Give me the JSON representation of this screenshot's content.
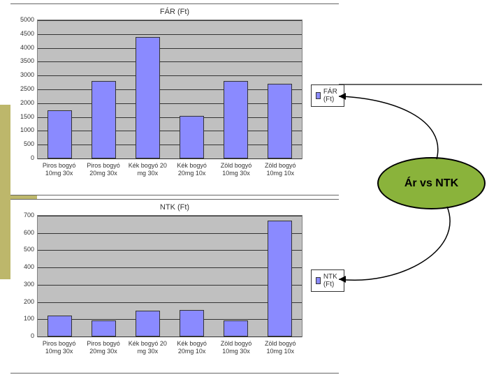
{
  "sidebar": {
    "olive_color": "#bdb76b"
  },
  "chart1": {
    "type": "bar",
    "title": "FÁR (Ft)",
    "categories": [
      "Piros bogyó 10mg 30x",
      "Piros bogyó 20mg 30x",
      "Kék bogyó 20 mg 30x",
      "Kék bogyó 20mg 10x",
      "Zöld bogyó 10mg 30x",
      "Zöld bogyó 10mg 10x"
    ],
    "values": [
      1750,
      2800,
      4400,
      1550,
      2800,
      2700
    ],
    "bar_color": "#8a8aff",
    "ylim": [
      0,
      5000
    ],
    "ytick_step": 500,
    "background_color": "#c0c0c0",
    "grid_color": "#333333",
    "bar_width": 0.55,
    "legend_label": "FÁR (Ft)",
    "label_fontsize": 9,
    "title_fontsize": 11
  },
  "chart2": {
    "type": "bar",
    "title": "NTK (Ft)",
    "categories": [
      "Piros bogyó 10mg 30x",
      "Piros bogyó 20mg 30x",
      "Kék bogyó 20 mg 30x",
      "Kék bogyó 20mg 10x",
      "Zöld bogyó 10mg 30x",
      "Zöld bogyó 10mg 10x"
    ],
    "values": [
      120,
      95,
      150,
      155,
      95,
      670
    ],
    "bar_color": "#8a8aff",
    "ylim": [
      0,
      700
    ],
    "ytick_step": 100,
    "background_color": "#c0c0c0",
    "grid_color": "#333333",
    "bar_width": 0.55,
    "legend_label": "NTK (Ft)",
    "label_fontsize": 9,
    "title_fontsize": 11
  },
  "oval": {
    "text": "Ár vs NTK",
    "fill": "#8ab33b",
    "stroke": "#000000",
    "text_color": "#000000",
    "fontsize": 16
  },
  "top_rule_color": "#666666"
}
